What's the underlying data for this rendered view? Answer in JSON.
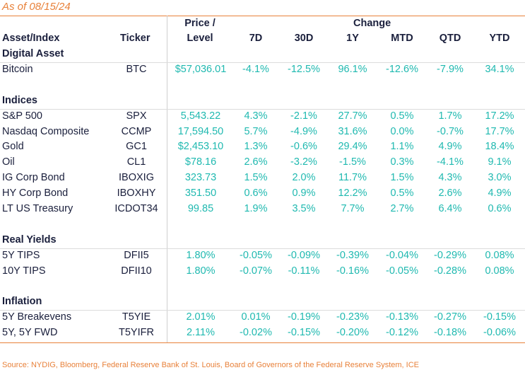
{
  "as_of": "As of 08/15/24",
  "headers": {
    "asset": "Asset/Index",
    "ticker": "Ticker",
    "price_line1": "Price /",
    "price_line2": "Level",
    "change": "Change",
    "periods": [
      "7D",
      "30D",
      "1Y",
      "MTD",
      "QTD",
      "YTD"
    ]
  },
  "rows": [
    {
      "type": "section",
      "name": "Digital Asset"
    },
    {
      "type": "data",
      "name": "Bitcoin",
      "ticker": "BTC",
      "price": "$57,036.01",
      "changes": [
        "-4.1%",
        "-12.5%",
        "96.1%",
        "-12.6%",
        "-7.9%",
        "34.1%"
      ]
    },
    {
      "type": "blank"
    },
    {
      "type": "section",
      "name": "Indices"
    },
    {
      "type": "data",
      "name": "S&P 500",
      "ticker": "SPX",
      "price": "5,543.22",
      "changes": [
        "4.3%",
        "-2.1%",
        "27.7%",
        "0.5%",
        "1.7%",
        "17.2%"
      ]
    },
    {
      "type": "data",
      "name": "Nasdaq Composite",
      "ticker": "CCMP",
      "price": "17,594.50",
      "changes": [
        "5.7%",
        "-4.9%",
        "31.6%",
        "0.0%",
        "-0.7%",
        "17.7%"
      ]
    },
    {
      "type": "data",
      "name": "Gold",
      "ticker": "GC1",
      "price": "$2,453.10",
      "changes": [
        "1.3%",
        "-0.6%",
        "29.4%",
        "1.1%",
        "4.9%",
        "18.4%"
      ]
    },
    {
      "type": "data",
      "name": "Oil",
      "ticker": "CL1",
      "price": "$78.16",
      "changes": [
        "2.6%",
        "-3.2%",
        "-1.5%",
        "0.3%",
        "-4.1%",
        "9.1%"
      ]
    },
    {
      "type": "data",
      "name": "IG Corp Bond",
      "ticker": "IBOXIG",
      "price": "323.73",
      "changes": [
        "1.5%",
        "2.0%",
        "11.7%",
        "1.5%",
        "4.3%",
        "3.0%"
      ]
    },
    {
      "type": "data",
      "name": "HY Corp Bond",
      "ticker": "IBOXHY",
      "price": "351.50",
      "changes": [
        "0.6%",
        "0.9%",
        "12.2%",
        "0.5%",
        "2.6%",
        "4.9%"
      ]
    },
    {
      "type": "data",
      "name": "LT US Treasury",
      "ticker": "ICDOT34",
      "price": "99.85",
      "changes": [
        "1.9%",
        "3.5%",
        "7.7%",
        "2.7%",
        "6.4%",
        "0.6%"
      ]
    },
    {
      "type": "blank"
    },
    {
      "type": "section",
      "name": "Real Yields"
    },
    {
      "type": "data",
      "name": "5Y TIPS",
      "ticker": "DFII5",
      "price": "1.80%",
      "changes": [
        "-0.05%",
        "-0.09%",
        "-0.39%",
        "-0.04%",
        "-0.29%",
        "0.08%"
      ]
    },
    {
      "type": "data",
      "name": "10Y TIPS",
      "ticker": "DFII10",
      "price": "1.80%",
      "changes": [
        "-0.07%",
        "-0.11%",
        "-0.16%",
        "-0.05%",
        "-0.28%",
        "0.08%"
      ]
    },
    {
      "type": "blank"
    },
    {
      "type": "section",
      "name": "Inflation"
    },
    {
      "type": "data",
      "name": "5Y Breakevens",
      "ticker": "T5YIE",
      "price": "2.01%",
      "changes": [
        "0.01%",
        "-0.19%",
        "-0.23%",
        "-0.13%",
        "-0.27%",
        "-0.15%"
      ]
    },
    {
      "type": "data",
      "name": "5Y, 5Y FWD",
      "ticker": "T5YIFR",
      "price": "2.11%",
      "changes": [
        "-0.02%",
        "-0.15%",
        "-0.20%",
        "-0.12%",
        "-0.18%",
        "-0.06%"
      ]
    }
  ],
  "source": "Source: NYDIG, Bloomberg, Federal Reserve Bank of St. Louis, Board of Governors of the Federal Reserve System, ICE"
}
